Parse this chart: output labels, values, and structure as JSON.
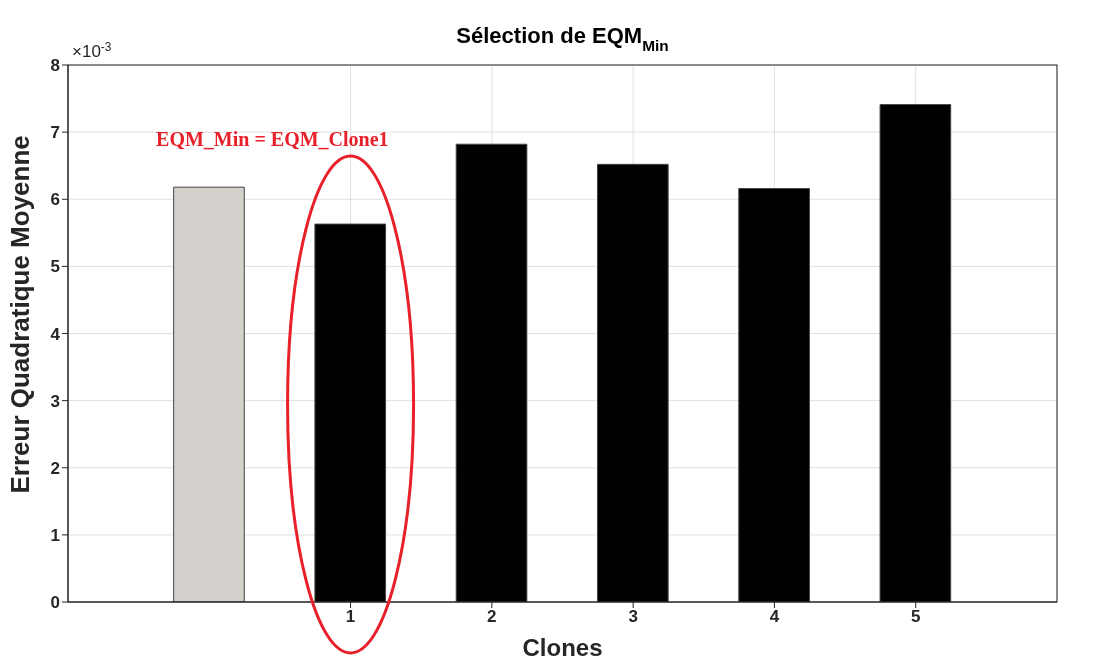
{
  "chart_data": {
    "type": "bar",
    "title": "Sélection de EQM$_{Min}$",
    "xlabel": "Clones",
    "ylabel": "Erreur Quadratique Moyenne",
    "x": [
      0,
      1,
      2,
      3,
      4,
      5
    ],
    "values": [
      6.18,
      5.63,
      6.82,
      6.52,
      6.16,
      7.41
    ],
    "colors": [
      "#d4d0cb",
      "#000000",
      "#000000",
      "#000000",
      "#000000",
      "#000000"
    ],
    "xlim": [
      -1,
      6
    ],
    "xticks": [
      1,
      2,
      3,
      4,
      5
    ],
    "ylim": [
      0,
      8
    ],
    "yticks": [
      0,
      1,
      2,
      3,
      4,
      5,
      6,
      7,
      8
    ],
    "grid": true,
    "annotations": [
      "×10$^{-3}$",
      "EQM_Min = EQM_Clone1"
    ]
  }
}
